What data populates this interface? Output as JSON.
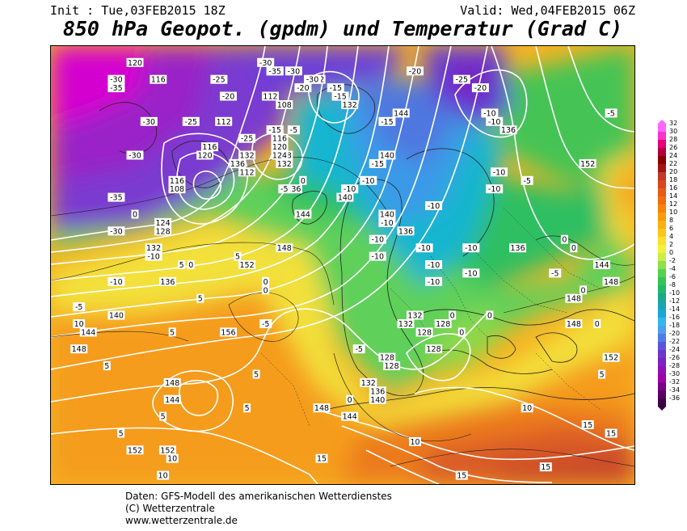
{
  "header": {
    "init": "Init : Tue,03FEB2015 18Z",
    "valid": "Valid: Wed,04FEB2015 06Z",
    "title": "850 hPa Geopot. (gpdm) und Temperatur (Grad C)"
  },
  "legend": {
    "labels": [
      "32",
      "30",
      "28",
      "26",
      "24",
      "22",
      "20",
      "18",
      "16",
      "14",
      "12",
      "10",
      "8",
      "6",
      "4",
      "2",
      "0",
      "-2",
      "-4",
      "-6",
      "-8",
      "-10",
      "-12",
      "-14",
      "-16",
      "-18",
      "-20",
      "-22",
      "-24",
      "-26",
      "-28",
      "-30",
      "-32",
      "-34",
      "-36"
    ],
    "colors": [
      "#ff66ff",
      "#ff33cc",
      "#e6007a",
      "#b3003c",
      "#8b0000",
      "#a51414",
      "#c0392b",
      "#d9451f",
      "#e85a14",
      "#f26b0d",
      "#f7830a",
      "#f99a0a",
      "#fbb010",
      "#fcc51c",
      "#fde02a",
      "#f5f03a",
      "#ccee44",
      "#8fe04a",
      "#55d24f",
      "#33c45a",
      "#22b86e",
      "#1aa98a",
      "#19a5b0",
      "#1aa6d6",
      "#33b6f0",
      "#4d9fef",
      "#4f7be8",
      "#5a55dc",
      "#6b38d0",
      "#7d22c4",
      "#8f10b8",
      "#a000ad",
      "#7a0088",
      "#5a0066",
      "#3b0044"
    ]
  },
  "map_labels": {
    "geopotential": [
      {
        "text": "120",
        "lon": -42,
        "lat": 72
      },
      {
        "text": "116",
        "lon": -37,
        "lat": 70
      },
      {
        "text": "112",
        "lon": -12,
        "lat": 71
      },
      {
        "text": "112",
        "lon": -23,
        "lat": 65
      },
      {
        "text": "116",
        "lon": -26,
        "lat": 62
      },
      {
        "text": "120",
        "lon": -27,
        "lat": 61
      },
      {
        "text": "108",
        "lon": -33,
        "lat": 57
      },
      {
        "text": "116",
        "lon": -33,
        "lat": 58
      },
      {
        "text": "112",
        "lon": -18,
        "lat": 59
      },
      {
        "text": "136",
        "lon": -20,
        "lat": 60
      },
      {
        "text": "132",
        "lon": -18,
        "lat": 61
      },
      {
        "text": "124",
        "lon": -36,
        "lat": 53
      },
      {
        "text": "128",
        "lon": -36,
        "lat": 52
      },
      {
        "text": "132",
        "lon": -38,
        "lat": 50
      },
      {
        "text": "136",
        "lon": -35,
        "lat": 46
      },
      {
        "text": "140",
        "lon": -46,
        "lat": 42
      },
      {
        "text": "144",
        "lon": -52,
        "lat": 40
      },
      {
        "text": "148",
        "lon": -54,
        "lat": 38
      },
      {
        "text": "148",
        "lon": -34,
        "lat": 34
      },
      {
        "text": "144",
        "lon": -34,
        "lat": 32
      },
      {
        "text": "152",
        "lon": -42,
        "lat": 26
      },
      {
        "text": "156",
        "lon": -22,
        "lat": 40
      },
      {
        "text": "152",
        "lon": -18,
        "lat": 48
      },
      {
        "text": "148",
        "lon": -10,
        "lat": 50
      },
      {
        "text": "144",
        "lon": -6,
        "lat": 54
      },
      {
        "text": "140",
        "lon": 3,
        "lat": 56
      },
      {
        "text": "136",
        "lon": -8,
        "lat": 57
      },
      {
        "text": "132",
        "lon": -10,
        "lat": 60
      },
      {
        "text": "128",
        "lon": -10,
        "lat": 61
      },
      {
        "text": "124",
        "lon": -11,
        "lat": 61
      },
      {
        "text": "120",
        "lon": -11,
        "lat": 62
      },
      {
        "text": "116",
        "lon": -11,
        "lat": 63
      },
      {
        "text": "112",
        "lon": -13,
        "lat": 68
      },
      {
        "text": "112",
        "lon": -3,
        "lat": 70
      },
      {
        "text": "108",
        "lon": -10,
        "lat": 67
      },
      {
        "text": "132",
        "lon": 4,
        "lat": 67
      },
      {
        "text": "140",
        "lon": 12,
        "lat": 61
      },
      {
        "text": "144",
        "lon": 15,
        "lat": 66
      },
      {
        "text": "136",
        "lon": 38,
        "lat": 64
      },
      {
        "text": "152",
        "lon": 55,
        "lat": 60
      },
      {
        "text": "136",
        "lon": 16,
        "lat": 52
      },
      {
        "text": "136",
        "lon": 40,
        "lat": 50
      },
      {
        "text": "140",
        "lon": 12,
        "lat": 54
      },
      {
        "text": "144",
        "lon": 58,
        "lat": 48
      },
      {
        "text": "148",
        "lon": 60,
        "lat": 46
      },
      {
        "text": "148",
        "lon": 52,
        "lat": 44
      },
      {
        "text": "148",
        "lon": 52,
        "lat": 41
      },
      {
        "text": "152",
        "lon": 60,
        "lat": 37
      },
      {
        "text": "132",
        "lon": 18,
        "lat": 42
      },
      {
        "text": "132",
        "lon": 16,
        "lat": 41
      },
      {
        "text": "128",
        "lon": 20,
        "lat": 40
      },
      {
        "text": "128",
        "lon": 24,
        "lat": 41
      },
      {
        "text": "128",
        "lon": 22,
        "lat": 38
      },
      {
        "text": "128",
        "lon": 12,
        "lat": 37
      },
      {
        "text": "128",
        "lon": 13,
        "lat": 36
      },
      {
        "text": "132",
        "lon": 8,
        "lat": 34
      },
      {
        "text": "136",
        "lon": 10,
        "lat": 33
      },
      {
        "text": "140",
        "lon": 10,
        "lat": 32
      },
      {
        "text": "144",
        "lon": 4,
        "lat": 30
      },
      {
        "text": "148",
        "lon": -2,
        "lat": 31
      },
      {
        "text": "152",
        "lon": -35,
        "lat": 26
      }
    ],
    "temperature": [
      {
        "text": "-30",
        "lon": -46,
        "lat": 70
      },
      {
        "text": "-35",
        "lon": -46,
        "lat": 69
      },
      {
        "text": "-25",
        "lon": -24,
        "lat": 70
      },
      {
        "text": "-20",
        "lon": -22,
        "lat": 68
      },
      {
        "text": "-30",
        "lon": -14,
        "lat": 72
      },
      {
        "text": "-35",
        "lon": -12,
        "lat": 71
      },
      {
        "text": "-30",
        "lon": -8,
        "lat": 71
      },
      {
        "text": "-30",
        "lon": -4,
        "lat": 70
      },
      {
        "text": "-20",
        "lon": -6,
        "lat": 69
      },
      {
        "text": "-25",
        "lon": -18,
        "lat": 63
      },
      {
        "text": "-20",
        "lon": -12,
        "lat": 64
      },
      {
        "text": "-30",
        "lon": -39,
        "lat": 65
      },
      {
        "text": "-30",
        "lon": -42,
        "lat": 61
      },
      {
        "text": "-35",
        "lon": -46,
        "lat": 56
      },
      {
        "text": "-30",
        "lon": -46,
        "lat": 52
      },
      {
        "text": "-25",
        "lon": -30,
        "lat": 65
      },
      {
        "text": "-15",
        "lon": -12,
        "lat": 64
      },
      {
        "text": "-10",
        "lon": -38,
        "lat": 49
      },
      {
        "text": "-5",
        "lon": -54,
        "lat": 43
      },
      {
        "text": "-10",
        "lon": -46,
        "lat": 46
      },
      {
        "text": "10",
        "lon": -54,
        "lat": 41
      },
      {
        "text": "-5",
        "lon": -10,
        "lat": 57
      },
      {
        "text": "-5",
        "lon": -8,
        "lat": 64
      },
      {
        "text": "-15",
        "lon": 1,
        "lat": 69
      },
      {
        "text": "-15",
        "lon": 2,
        "lat": 68
      },
      {
        "text": "-20",
        "lon": 18,
        "lat": 71
      },
      {
        "text": "-25",
        "lon": 28,
        "lat": 70
      },
      {
        "text": "-20",
        "lon": 32,
        "lat": 69
      },
      {
        "text": "-10",
        "lon": 34,
        "lat": 66
      },
      {
        "text": "-10",
        "lon": 35,
        "lat": 65
      },
      {
        "text": "-15",
        "lon": 12,
        "lat": 65
      },
      {
        "text": "-15",
        "lon": 10,
        "lat": 60
      },
      {
        "text": "-10",
        "lon": 8,
        "lat": 58
      },
      {
        "text": "-10",
        "lon": 4,
        "lat": 57
      },
      {
        "text": "-10",
        "lon": 22,
        "lat": 55
      },
      {
        "text": "-10",
        "lon": 12,
        "lat": 53
      },
      {
        "text": "-10",
        "lon": 10,
        "lat": 51
      },
      {
        "text": "-10",
        "lon": 10,
        "lat": 49
      },
      {
        "text": "-10",
        "lon": 20,
        "lat": 50
      },
      {
        "text": "-10",
        "lon": 22,
        "lat": 48
      },
      {
        "text": "-10",
        "lon": 30,
        "lat": 50
      },
      {
        "text": "-10",
        "lon": 22,
        "lat": 46
      },
      {
        "text": "-10",
        "lon": 30,
        "lat": 47
      },
      {
        "text": "-10",
        "lon": 36,
        "lat": 59
      },
      {
        "text": "-10",
        "lon": 35,
        "lat": 57
      },
      {
        "text": "-5",
        "lon": 42,
        "lat": 58
      },
      {
        "text": "-5",
        "lon": 48,
        "lat": 47
      },
      {
        "text": "-5",
        "lon": 60,
        "lat": 66
      },
      {
        "text": "-5",
        "lon": -14,
        "lat": 41
      },
      {
        "text": "-5",
        "lon": 6,
        "lat": 38
      },
      {
        "text": "0",
        "lon": -42,
        "lat": 54
      },
      {
        "text": "0",
        "lon": -6,
        "lat": 58
      },
      {
        "text": "0",
        "lon": -30,
        "lat": 48
      },
      {
        "text": "0",
        "lon": -14,
        "lat": 46
      },
      {
        "text": "0",
        "lon": -14,
        "lat": 45
      },
      {
        "text": "0",
        "lon": 4,
        "lat": 32
      },
      {
        "text": "0",
        "lon": 26,
        "lat": 42
      },
      {
        "text": "0",
        "lon": 28,
        "lat": 40
      },
      {
        "text": "0",
        "lon": 34,
        "lat": 42
      },
      {
        "text": "0",
        "lon": 50,
        "lat": 51
      },
      {
        "text": "0",
        "lon": 52,
        "lat": 50
      },
      {
        "text": "0",
        "lon": 54,
        "lat": 45
      },
      {
        "text": "0",
        "lon": 57,
        "lat": 41
      },
      {
        "text": "5",
        "lon": -48,
        "lat": 36
      },
      {
        "text": "5",
        "lon": -28,
        "lat": 44
      },
      {
        "text": "5",
        "lon": -32,
        "lat": 48
      },
      {
        "text": "5",
        "lon": -20,
        "lat": 49
      },
      {
        "text": "5",
        "lon": -34,
        "lat": 40
      },
      {
        "text": "5",
        "lon": -16,
        "lat": 35
      },
      {
        "text": "5",
        "lon": -18,
        "lat": 31
      },
      {
        "text": "5",
        "lon": -36,
        "lat": 30
      },
      {
        "text": "5",
        "lon": -45,
        "lat": 28
      },
      {
        "text": "5",
        "lon": 58,
        "lat": 35
      },
      {
        "text": "10",
        "lon": -34,
        "lat": 25
      },
      {
        "text": "10",
        "lon": 18,
        "lat": 27
      },
      {
        "text": "10",
        "lon": 42,
        "lat": 31
      },
      {
        "text": "15",
        "lon": -2,
        "lat": 25
      },
      {
        "text": "15",
        "lon": 28,
        "lat": 23
      },
      {
        "text": "15",
        "lon": 46,
        "lat": 24
      },
      {
        "text": "15",
        "lon": 60,
        "lat": 28
      },
      {
        "text": "15",
        "lon": 55,
        "lat": 29
      },
      {
        "text": "10",
        "lon": -36,
        "lat": 23
      }
    ]
  },
  "footer": {
    "line1": "Daten: GFS-Modell des amerikanischen Wetterdienstes",
    "line2": "(C) Wetterzentrale",
    "line3": "www.wetterzentrale.de"
  }
}
